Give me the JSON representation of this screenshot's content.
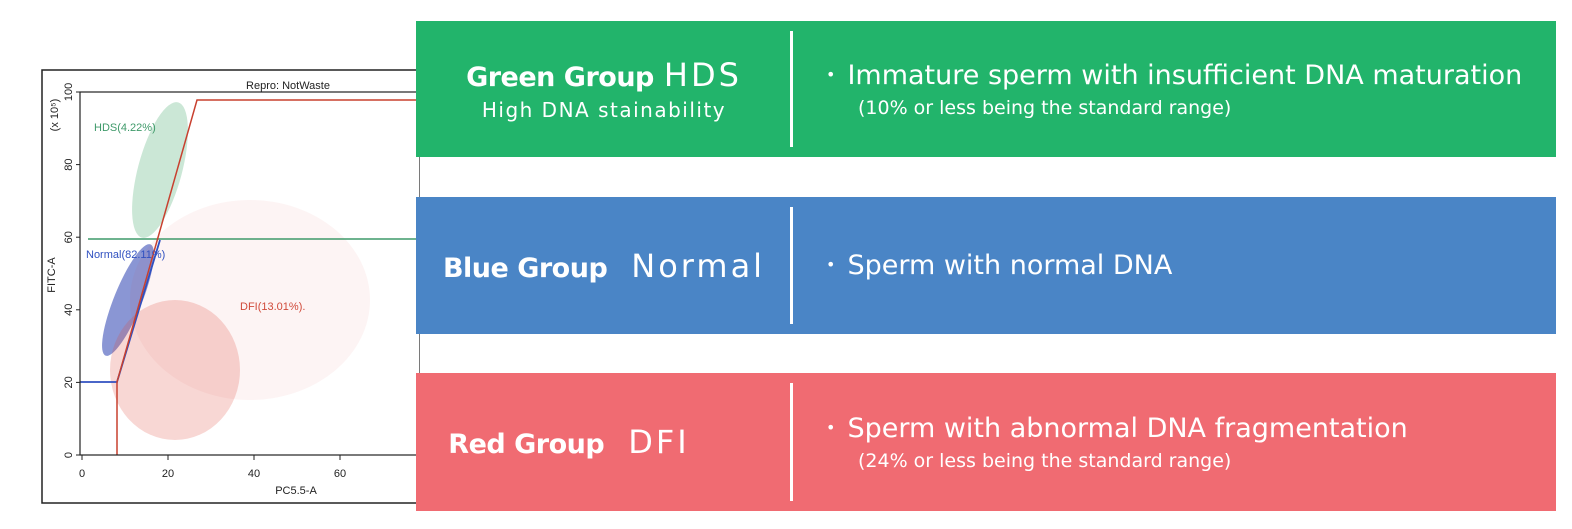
{
  "plot": {
    "title": "Repro: NotWaste",
    "x_label": "PC5.5-A",
    "y_label": "FITC-A",
    "y_unit": "(x 10⁵)",
    "xlim": [
      0,
      78
    ],
    "ylim": [
      0,
      100
    ],
    "xticks": [
      0,
      20,
      40,
      60
    ],
    "yticks": [
      0,
      20,
      40,
      60,
      80,
      100
    ],
    "gates": [
      "HDS(4.22%)",
      "Normal(82.11%)",
      "DFI(13.01%)."
    ]
  },
  "groups": [
    {
      "name": "Green Group",
      "code": "HDS",
      "subtitle": "High DNA stainability",
      "description": "Immature sperm with insufficient DNA maturation",
      "note": "(10% or less being the standard range)"
    },
    {
      "name": "Blue Group",
      "code": "Normal",
      "description": "Sperm with normal DNA"
    },
    {
      "name": "Red Group",
      "code": "DFI",
      "description": "Sperm with abnormal DNA fragmentation",
      "note": "(24% or less being the standard range)"
    }
  ]
}
